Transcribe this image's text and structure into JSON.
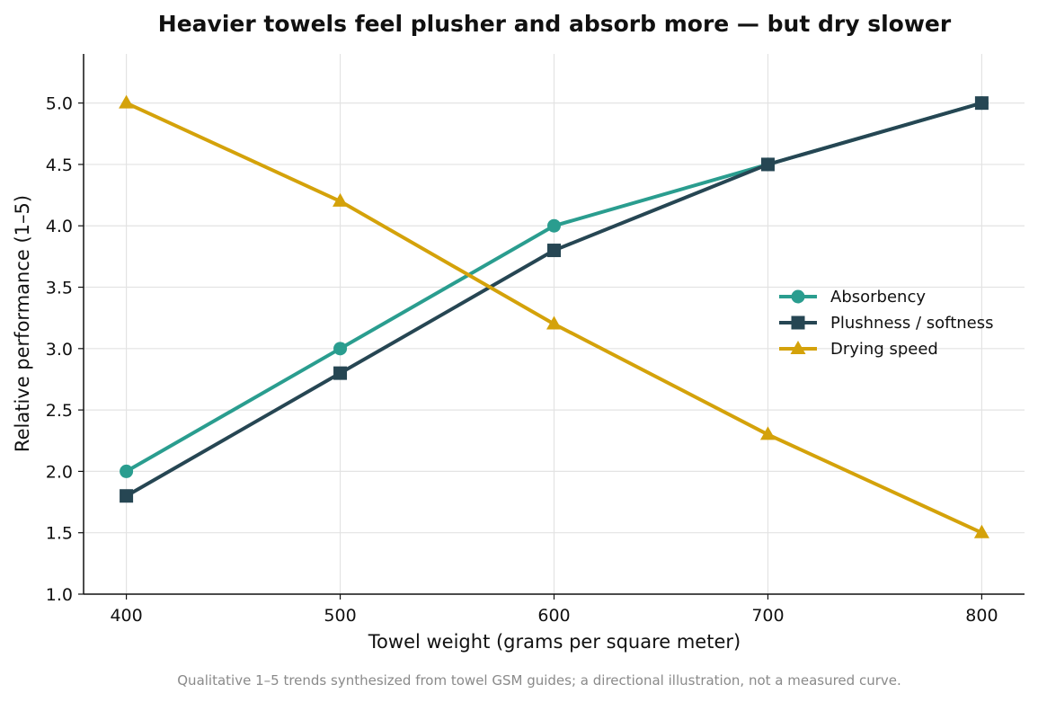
{
  "chart_data": {
    "type": "line",
    "title": "Heavier towels feel plusher and absorb more — but dry slower",
    "xlabel": "Towel weight (grams per square meter)",
    "ylabel": "Relative performance (1–5)",
    "x": [
      400,
      500,
      600,
      700,
      800
    ],
    "x_ticks": [
      "400",
      "500",
      "600",
      "700",
      "800"
    ],
    "y_ticks": [
      "1.0",
      "1.5",
      "2.0",
      "2.5",
      "3.0",
      "3.5",
      "4.0",
      "4.5",
      "5.0"
    ],
    "xlim": [
      380,
      820
    ],
    "ylim": [
      1.0,
      5.4
    ],
    "grid": true,
    "legend_position": "center-right",
    "series": [
      {
        "name": "Absorbency",
        "marker": "circle",
        "color": "#2a9d8f",
        "values": [
          2.0,
          3.0,
          4.0,
          4.5,
          5.0
        ]
      },
      {
        "name": "Plushness / softness",
        "marker": "square",
        "color": "#264653",
        "values": [
          1.8,
          2.8,
          3.8,
          4.5,
          5.0
        ]
      },
      {
        "name": "Drying speed",
        "marker": "triangle",
        "color": "#d4a20a",
        "values": [
          5.0,
          4.2,
          3.2,
          2.3,
          1.5
        ]
      }
    ],
    "footnote": "Qualitative 1–5 trends synthesized from towel GSM guides; a directional illustration, not a measured curve."
  }
}
